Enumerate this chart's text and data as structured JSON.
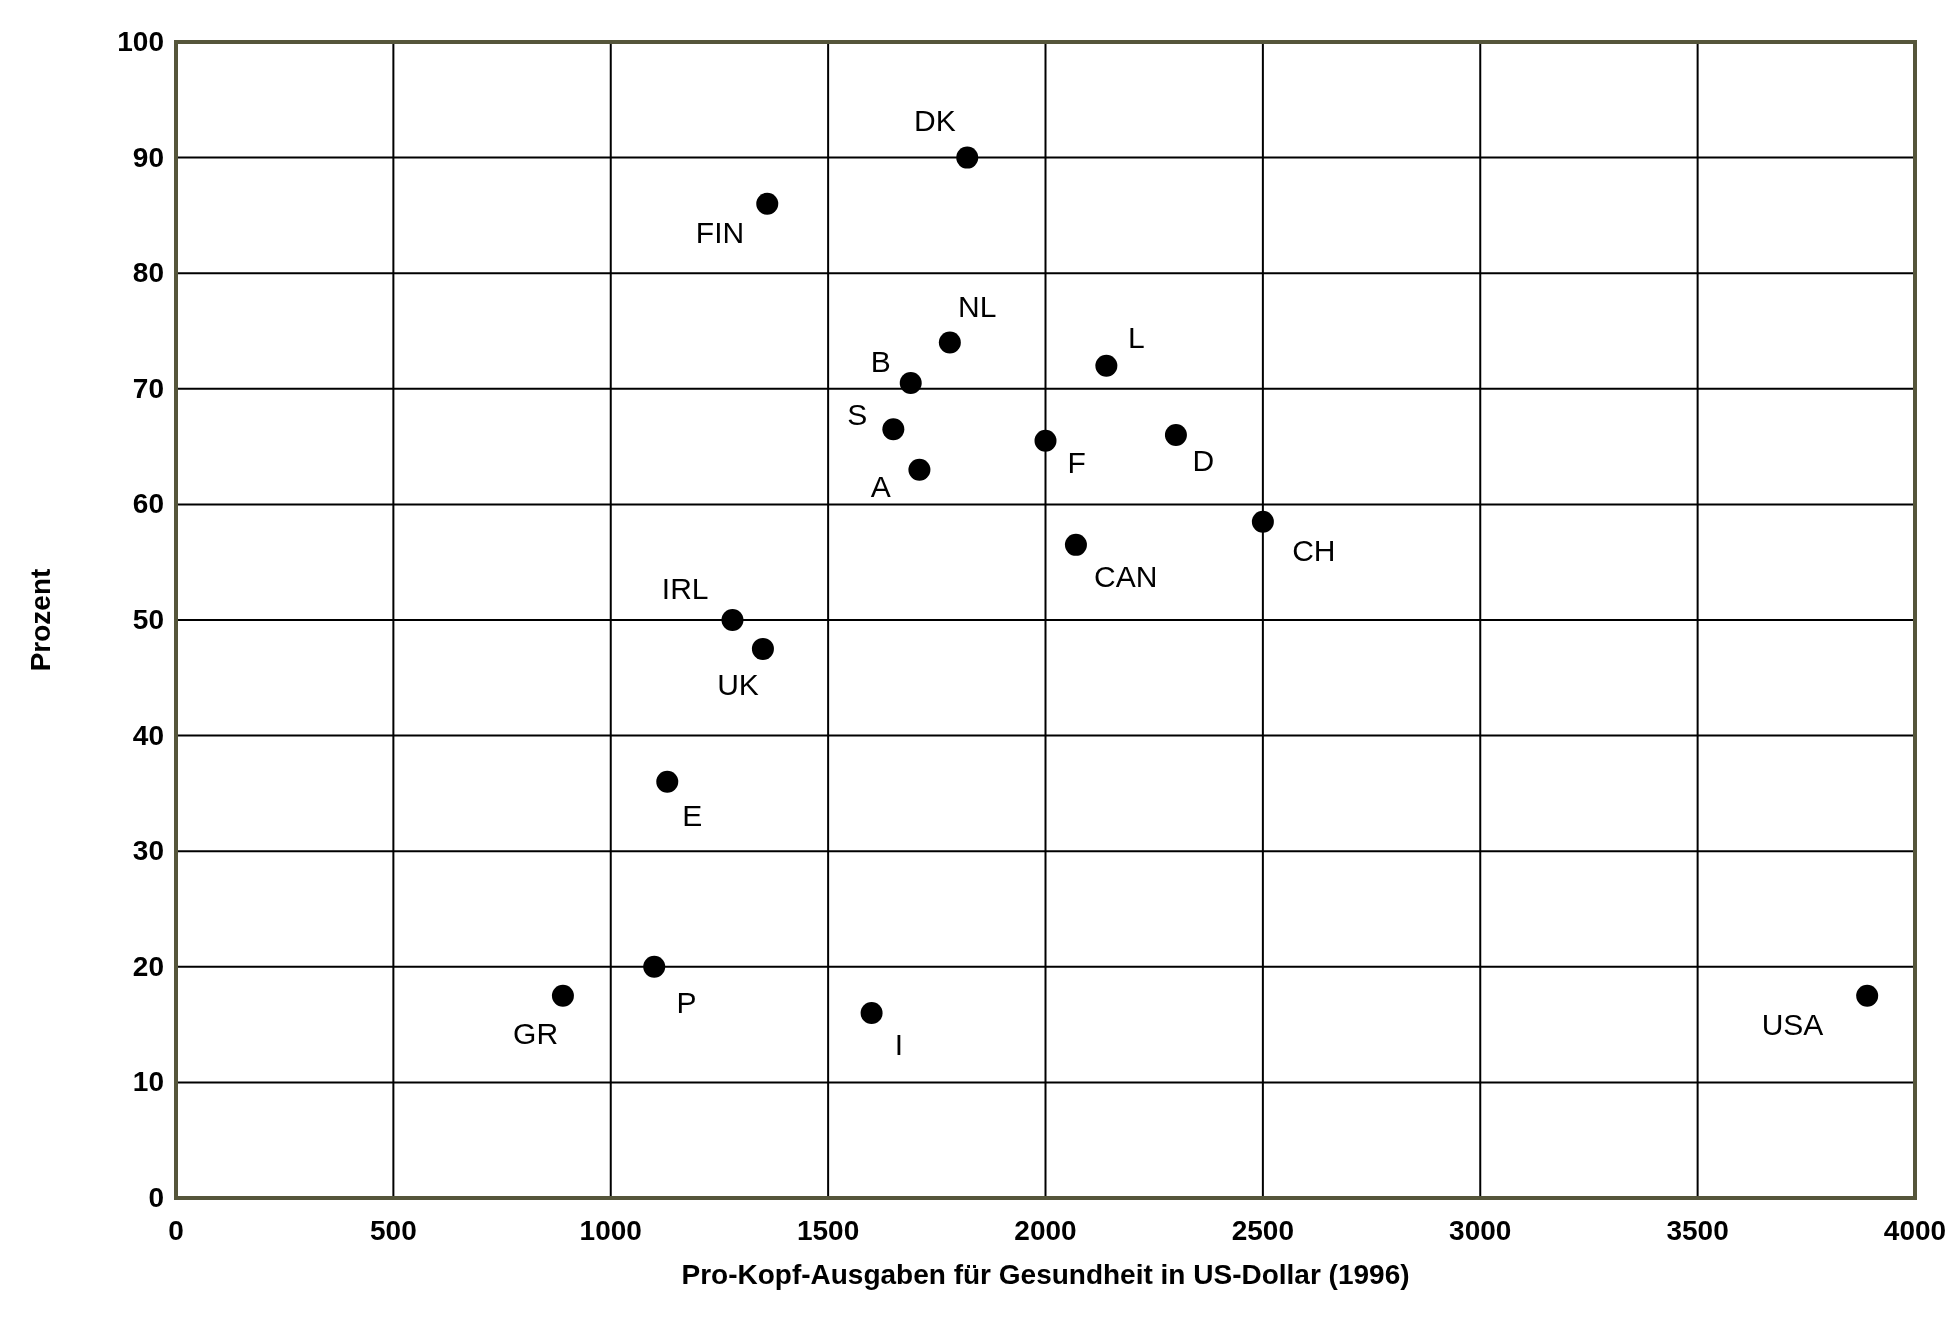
{
  "chart_data": {
    "type": "scatter",
    "xlabel": "Pro-Kopf-Ausgaben für Gesundheit in US-Dollar (1996)",
    "ylabel": "Prozent",
    "xlim": [
      0,
      4000
    ],
    "xticks": [
      0,
      500,
      1000,
      1500,
      2000,
      2500,
      3000,
      3500,
      4000
    ],
    "ylim": [
      0,
      100
    ],
    "yticks": [
      0,
      10,
      20,
      30,
      40,
      50,
      60,
      70,
      80,
      90,
      100
    ],
    "grid": true,
    "marker": "circle",
    "series": [
      {
        "color": "#000000",
        "x": [
          1820,
          1360,
          1780,
          2140,
          1690,
          1650,
          1710,
          2000,
          2300,
          2070,
          2500,
          1280,
          1350,
          1130,
          1100,
          890,
          1600,
          3890
        ],
        "values": [
          90,
          86,
          74,
          72,
          70.5,
          66.5,
          63,
          65.5,
          66,
          56.5,
          58.5,
          50,
          47.5,
          36,
          20,
          17.5,
          16,
          17.5
        ]
      }
    ],
    "annotations": [
      {
        "text": "DK",
        "x": 1820,
        "y": 90
      },
      {
        "text": "FIN",
        "x": 1360,
        "y": 86
      },
      {
        "text": "NL",
        "x": 1780,
        "y": 74
      },
      {
        "text": "L",
        "x": 2140,
        "y": 72
      },
      {
        "text": "B",
        "x": 1690,
        "y": 70.5
      },
      {
        "text": "S",
        "x": 1650,
        "y": 66.5
      },
      {
        "text": "A",
        "x": 1710,
        "y": 63
      },
      {
        "text": "F",
        "x": 2000,
        "y": 65.5
      },
      {
        "text": "D",
        "x": 2300,
        "y": 66
      },
      {
        "text": "CAN",
        "x": 2070,
        "y": 56.5
      },
      {
        "text": "CH",
        "x": 2500,
        "y": 58.5
      },
      {
        "text": "IRL",
        "x": 1280,
        "y": 50
      },
      {
        "text": "UK",
        "x": 1350,
        "y": 47.5
      },
      {
        "text": "E",
        "x": 1130,
        "y": 36
      },
      {
        "text": "P",
        "x": 1100,
        "y": 20
      },
      {
        "text": "GR",
        "x": 890,
        "y": 17.5
      },
      {
        "text": "I",
        "x": 1600,
        "y": 16
      },
      {
        "text": "USA",
        "x": 3890,
        "y": 17.5
      }
    ]
  }
}
